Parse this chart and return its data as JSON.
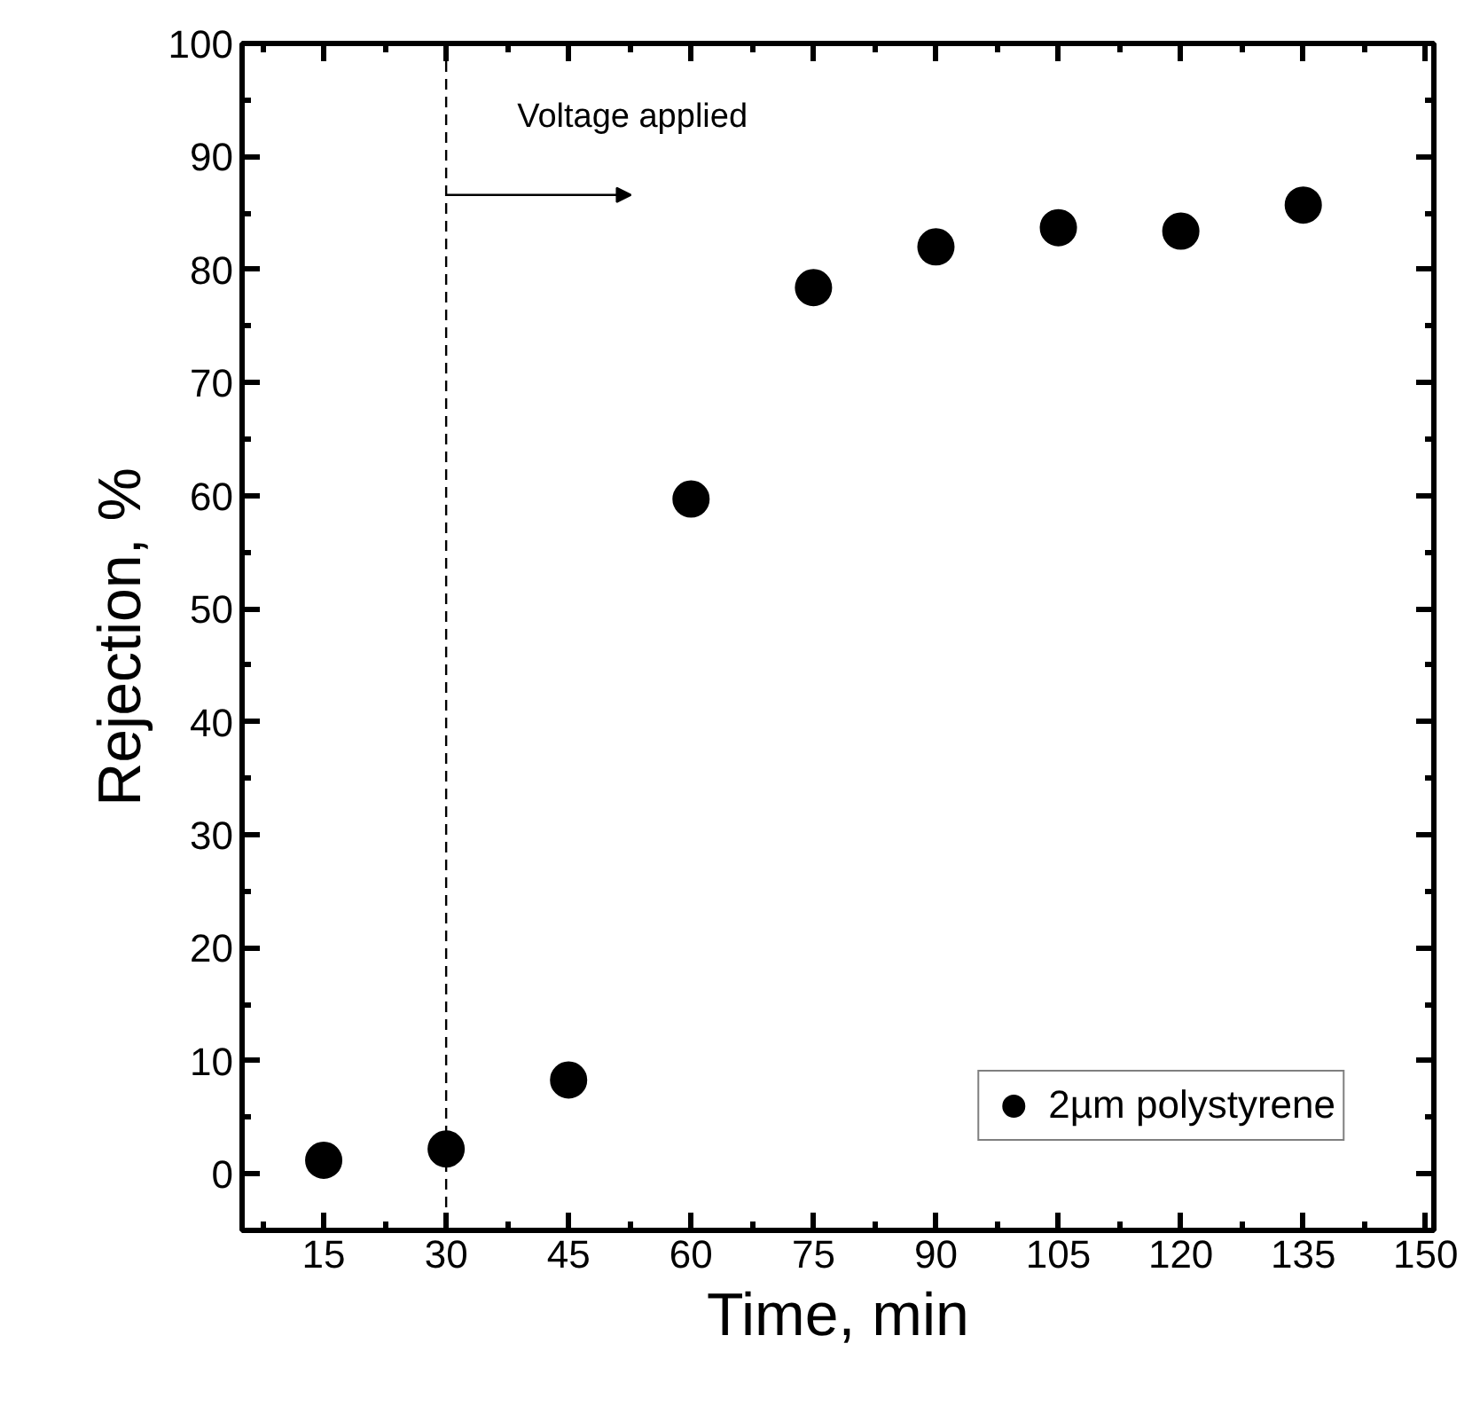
{
  "chart_data": {
    "type": "scatter",
    "xlabel": "Time, min",
    "ylabel": "Rejection, %",
    "x": [
      15,
      30,
      45,
      60,
      75,
      90,
      105,
      120,
      135
    ],
    "series": [
      {
        "name": "2µm polystyrene",
        "color": "#000000",
        "values": [
          1.2,
          2.2,
          8.3,
          59.7,
          78.4,
          82.0,
          83.7,
          83.4,
          85.7
        ]
      }
    ],
    "xlim": [
      5,
      151
    ],
    "xticks": [
      15,
      30,
      45,
      60,
      75,
      90,
      105,
      120,
      135,
      150
    ],
    "ylim": [
      -5,
      100
    ],
    "yticks": [
      0,
      10,
      20,
      30,
      40,
      50,
      60,
      70,
      80,
      90,
      100
    ],
    "ref_lines": [
      {
        "axis": "x",
        "value": 30,
        "label": "Voltage applied",
        "line_style": "dashed",
        "color": "#000000"
      }
    ],
    "marker": "circle",
    "grid": false,
    "legend": "bottom right"
  }
}
